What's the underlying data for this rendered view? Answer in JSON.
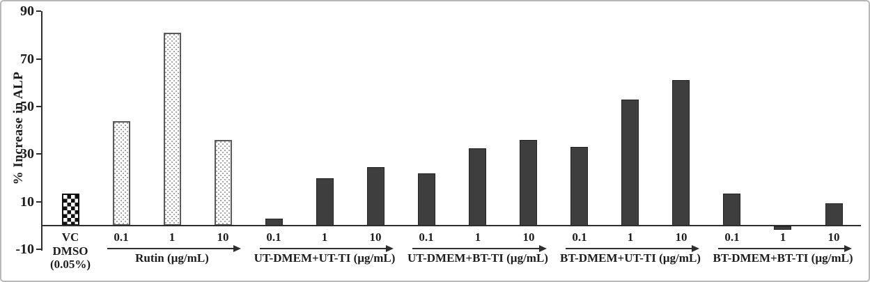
{
  "chart_data": {
    "type": "bar",
    "title": "",
    "ylabel": "% Increase in ALP",
    "xlabel": "",
    "ylim": [
      -10,
      90
    ],
    "y_ticks": [
      90,
      70,
      50,
      30,
      10,
      -10
    ],
    "grid": false,
    "legend": "none",
    "groups": [
      {
        "name_lines": [
          "VC",
          "DMSO",
          "(0.05%)"
        ],
        "style": "checker",
        "arrow": false,
        "doses": [
          ""
        ],
        "values": [
          13.5
        ]
      },
      {
        "name_lines": [
          "Rutin (µg/mL)"
        ],
        "style": "dots",
        "arrow": true,
        "doses": [
          "0.1",
          "1",
          "10"
        ],
        "values": [
          44,
          81,
          36
        ]
      },
      {
        "name_lines": [
          "UT-DMEM+UT-TI (µg/mL)"
        ],
        "style": "solid",
        "arrow": true,
        "doses": [
          "0.1",
          "1",
          "10"
        ],
        "values": [
          3,
          20,
          24.5
        ]
      },
      {
        "name_lines": [
          "UT-DMEM+BT-TI (µg/mL)"
        ],
        "style": "solid",
        "arrow": true,
        "doses": [
          "0.1",
          "1",
          "10"
        ],
        "values": [
          22,
          32.5,
          36
        ]
      },
      {
        "name_lines": [
          "BT-DMEM+UT-TI (µg/mL)"
        ],
        "style": "solid",
        "arrow": true,
        "doses": [
          "0.1",
          "1",
          "10"
        ],
        "values": [
          33,
          53,
          61
        ]
      },
      {
        "name_lines": [
          "BT-DMEM+BT-TI (µg/mL)"
        ],
        "style": "solid",
        "arrow": true,
        "doses": [
          "0.1",
          "1",
          "10"
        ],
        "values": [
          13.5,
          -1.5,
          9.5
        ]
      }
    ],
    "colors": {
      "solid_bar": "#3e3e3e",
      "axis": "#2e2e2e",
      "dot_bar_border": "#5a5a5a",
      "checker_black": "#0f0f0f",
      "figure_border": "#b8b8b8"
    }
  }
}
